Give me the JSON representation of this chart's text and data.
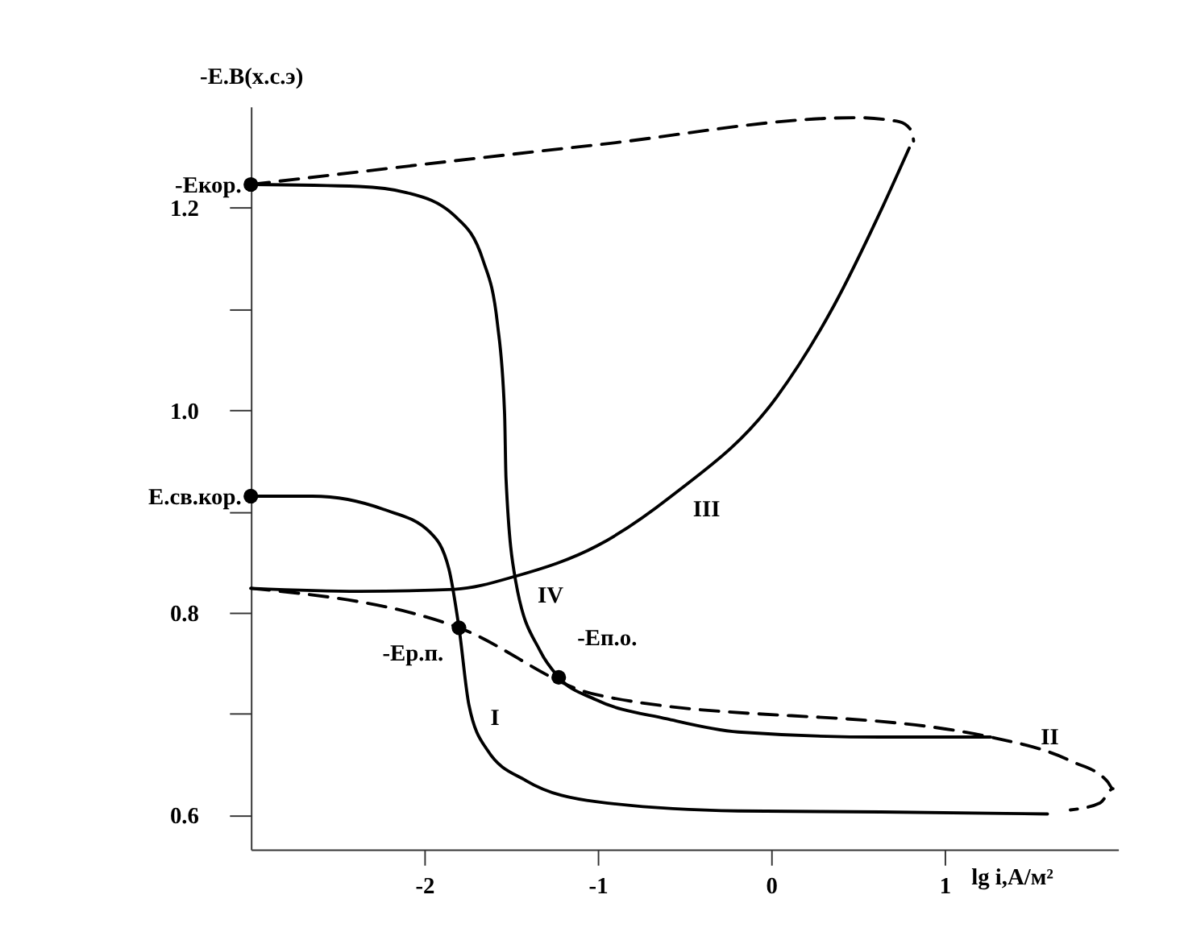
{
  "chart_data": {
    "type": "line",
    "ylabel": "-E.B(х.с.э)",
    "xlabel": "lg i,А/м²",
    "xlim": [
      -3,
      2
    ],
    "ylim": [
      0.566,
      1.3
    ],
    "xticks": [
      -2,
      -1,
      0,
      1
    ],
    "yticks": [
      {
        "value": 0.6,
        "label": "0.6"
      },
      {
        "value": 0.7,
        "label": null
      },
      {
        "value": 0.8,
        "label": "0.8"
      },
      {
        "value": 0.9,
        "label": null
      },
      {
        "value": 1.0,
        "label": "1.0"
      },
      {
        "value": 1.1,
        "label": null
      },
      {
        "value": 1.2,
        "label": "1.2"
      }
    ],
    "grid": false,
    "marker": "none",
    "series": [
      {
        "name": "I",
        "color": "#000000",
        "line_style": "solid",
        "x": [
          -3,
          -2.647,
          -2.236,
          -1.965,
          -1.858,
          -1.8,
          -1.743,
          -1.636,
          -1.414,
          -1.003,
          -0.19,
          0.632,
          1.593
        ],
        "values": [
          0.915,
          0.915,
          0.902,
          0.879,
          0.843,
          0.785,
          0.709,
          0.664,
          0.634,
          0.613,
          0.604,
          0.603,
          0.601
        ]
      },
      {
        "name": "II",
        "color": "#000000",
        "line_style": "dashed",
        "x": [
          -3,
          -1.8,
          -1.012,
          1.265,
          1.733,
          1.939,
          1.971,
          1.897,
          1.725
        ],
        "values": [
          0.824,
          0.785,
          0.719,
          0.677,
          0.653,
          0.633,
          0.626,
          0.612,
          0.605
        ]
      },
      {
        "name": "III",
        "color": "#000000",
        "line_style": "solid",
        "x": [
          -3,
          -2.376,
          -1.825,
          -1.472,
          -1.003,
          -0.576,
          0.032,
          0.361,
          0.632,
          0.796
        ],
        "values": [
          0.824,
          0.821,
          0.823,
          0.836,
          0.866,
          0.915,
          1.013,
          1.103,
          1.197,
          1.259
        ]
      },
      {
        "name": "IV",
        "color": "#000000",
        "line_style": "solid",
        "x": [
          -3,
          -2.376,
          -2.104,
          -1.825,
          -1.661,
          -1.578,
          -1.537,
          -1.529,
          -1.472,
          -1.332,
          -1.225,
          -1.012,
          -0.601,
          -0.19,
          0.632,
          1.265
        ],
        "values": [
          1.223,
          1.221,
          1.215,
          1.192,
          1.148,
          1.085,
          0.996,
          0.933,
          0.83,
          0.762,
          0.736,
          0.714,
          0.695,
          0.682,
          0.677,
          0.677
        ]
      },
      {
        "color": "#000000",
        "line_style": "dashed",
        "x": [
          -3,
          -1.012,
          0.492,
          0.739,
          0.813,
          0.821
        ],
        "values": [
          1.223,
          1.262,
          1.289,
          1.285,
          1.275,
          1.266
        ]
      },
      {
        "type": "scatter",
        "marker": "circle",
        "color": "#000000",
        "x": [
          -3,
          -3,
          -1.8,
          -1.225
        ],
        "values": [
          1.223,
          0.915,
          0.785,
          0.736
        ]
      }
    ],
    "annotations": [
      {
        "text": "-Eкор.",
        "x": -3,
        "y": 1.223
      },
      {
        "text": "E.св.кор.",
        "x": -3,
        "y": 0.915
      },
      {
        "text": "-Eр.п.",
        "x": -1.8,
        "y": 0.785
      },
      {
        "text": "-Eп.о.",
        "x": -1.225,
        "y": 0.736
      }
    ]
  }
}
